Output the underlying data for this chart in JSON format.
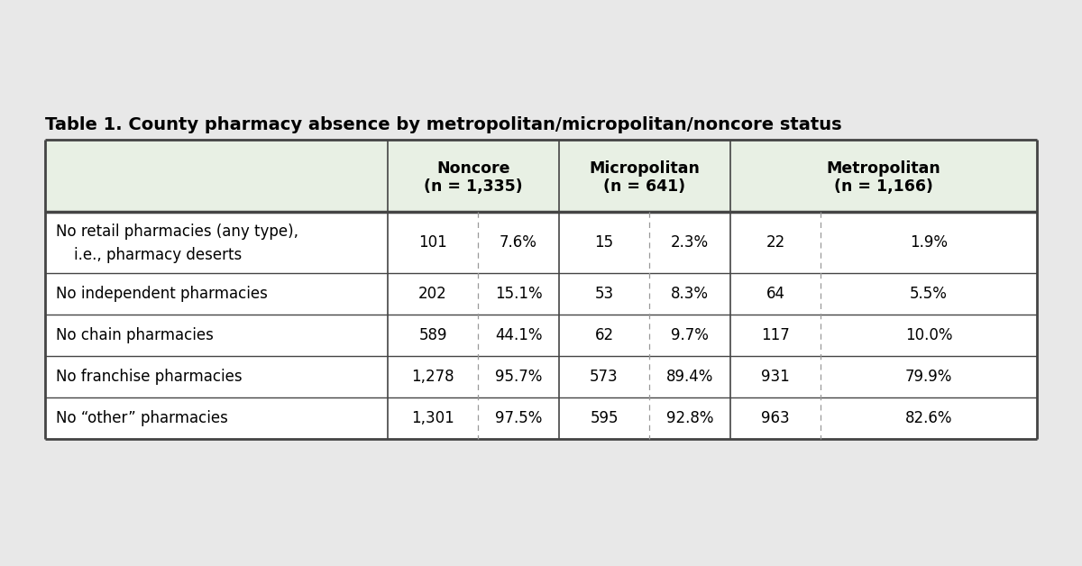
{
  "title": "Table 1. County pharmacy absence by metropolitan/micropolitan/noncore status",
  "col_headers": [
    [
      "Noncore",
      "(n = 1,335)"
    ],
    [
      "Micropolitan",
      "(n = 641)"
    ],
    [
      "Metropolitan",
      "(n = 1,166)"
    ]
  ],
  "rows": [
    {
      "label_line1": "No retail pharmacies (any type),",
      "label_line2": "   i.e., pharmacy deserts",
      "two_lines": true,
      "noncore_n": "101",
      "noncore_pct": "7.6%",
      "micro_n": "15",
      "micro_pct": "2.3%",
      "metro_n": "22",
      "metro_pct": "1.9%"
    },
    {
      "label_line1": "No independent pharmacies",
      "label_line2": "",
      "two_lines": false,
      "noncore_n": "202",
      "noncore_pct": "15.1%",
      "micro_n": "53",
      "micro_pct": "8.3%",
      "metro_n": "64",
      "metro_pct": "5.5%"
    },
    {
      "label_line1": "No chain pharmacies",
      "label_line2": "",
      "two_lines": false,
      "noncore_n": "589",
      "noncore_pct": "44.1%",
      "micro_n": "62",
      "micro_pct": "9.7%",
      "metro_n": "117",
      "metro_pct": "10.0%"
    },
    {
      "label_line1": "No franchise pharmacies",
      "label_line2": "",
      "two_lines": false,
      "noncore_n": "1,278",
      "noncore_pct": "95.7%",
      "micro_n": "573",
      "micro_pct": "89.4%",
      "metro_n": "931",
      "metro_pct": "79.9%"
    },
    {
      "label_line1": "No “other” pharmacies",
      "label_line2": "",
      "two_lines": false,
      "noncore_n": "1,301",
      "noncore_pct": "97.5%",
      "micro_n": "595",
      "micro_pct": "92.8%",
      "metro_n": "963",
      "metro_pct": "82.6%"
    }
  ],
  "header_bg": "#e8f0e4",
  "row_bg_odd": "#ffffff",
  "row_bg_even": "#ffffff",
  "border_color": "#444444",
  "dashed_color": "#999999",
  "title_fontsize": 14,
  "header_fontsize": 12.5,
  "cell_fontsize": 12,
  "background_color": "#e8e8e8"
}
